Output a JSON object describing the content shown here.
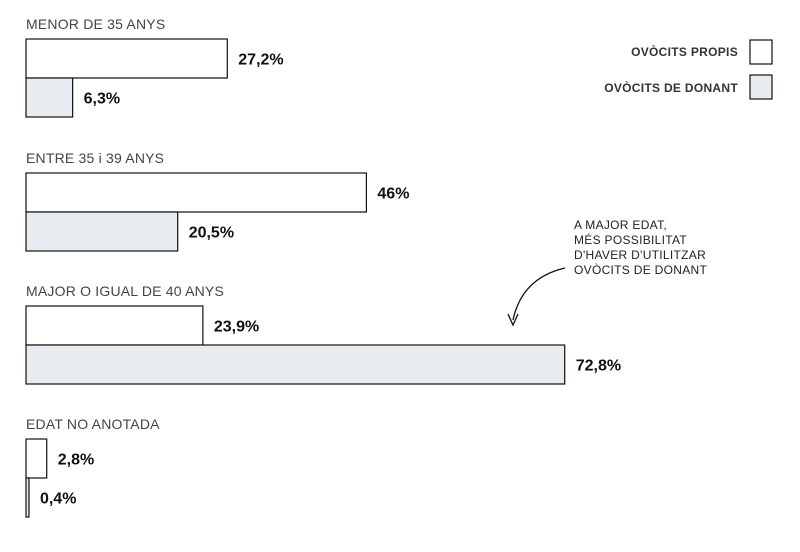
{
  "colors": {
    "own_fill": "#ffffff",
    "donor_fill": "#e8ebf0",
    "stroke": "#111111"
  },
  "legend": [
    {
      "label": "OVÒCITS PROPIS",
      "series": "own"
    },
    {
      "label": "OVÒCITS DE DONANT",
      "series": "donor"
    }
  ],
  "annotation": {
    "lines": [
      "A MAJOR EDAT,",
      "MÉS POSSIBILITAT",
      "D'HAVER D'UTILITZAR",
      "OVÒCITS DE DONANT"
    ]
  },
  "chart_data": {
    "type": "bar",
    "orientation": "horizontal",
    "title": "",
    "xlabel": "",
    "ylabel": "",
    "xlim": [
      0,
      100
    ],
    "grid": false,
    "legend_position": "top-right",
    "categories": [
      "MENOR DE 35 ANYS",
      "ENTRE 35 i 39 ANYS",
      "MAJOR O IGUAL DE 40 ANYS",
      "EDAT NO ANOTADA"
    ],
    "series": [
      {
        "name": "OVÒCITS PROPIS",
        "key": "own",
        "values": [
          27.2,
          46,
          23.9,
          2.8
        ],
        "labels": [
          "27,2%",
          "46%",
          "23,9%",
          "2,8%"
        ]
      },
      {
        "name": "OVÒCITS DE DONANT",
        "key": "donor",
        "values": [
          6.3,
          20.5,
          72.8,
          0.4
        ],
        "labels": [
          "6,3%",
          "20,5%",
          "72,8%",
          "0,4%"
        ]
      }
    ]
  }
}
